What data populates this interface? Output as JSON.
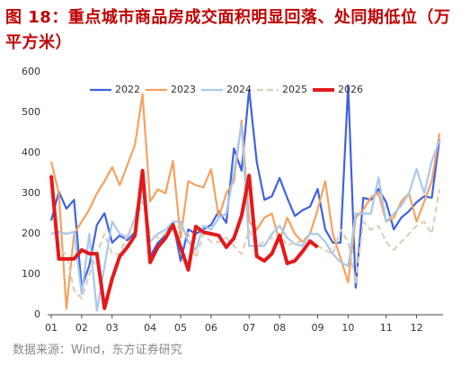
{
  "chart_data": {
    "type": "line",
    "title": "图 18：重点城市商品房成交面积明显回落、处同期低位（万平方米）",
    "source": "数据来源：Wind，东方证券研究",
    "categories": [
      "01",
      null,
      null,
      null,
      "02",
      null,
      null,
      null,
      "03",
      null,
      null,
      null,
      null,
      "04",
      null,
      null,
      null,
      "05",
      null,
      null,
      null,
      "06",
      null,
      null,
      null,
      null,
      "07",
      null,
      null,
      null,
      "08",
      null,
      null,
      null,
      null,
      "09",
      null,
      null,
      null,
      "10",
      null,
      null,
      null,
      null,
      "11",
      null,
      null,
      null,
      "12",
      null,
      null,
      null
    ],
    "series": [
      {
        "name": "2022",
        "color": "#3f63e0",
        "values": [
          233,
          304,
          262,
          284,
          67,
          122,
          222,
          251,
          178,
          196,
          184,
          204,
          333,
          144,
          178,
          196,
          229,
          133,
          211,
          200,
          211,
          222,
          256,
          227,
          411,
          356,
          556,
          378,
          284,
          293,
          338,
          289,
          244,
          258,
          267,
          311,
          211,
          178,
          178,
          567,
          67,
          289,
          284,
          311,
          278,
          211,
          240,
          256,
          278,
          293,
          289,
          433
        ]
      },
      {
        "name": "2023",
        "color": "#f7a15e",
        "values": [
          378,
          300,
          15,
          200,
          230,
          260,
          300,
          330,
          365,
          320,
          370,
          420,
          545,
          280,
          310,
          300,
          380,
          190,
          330,
          320,
          315,
          360,
          240,
          300,
          330,
          480,
          230,
          210,
          240,
          250,
          180,
          240,
          200,
          180,
          200,
          260,
          330,
          200,
          140,
          80,
          240,
          260,
          290,
          300,
          230,
          240,
          280,
          300,
          230,
          280,
          330,
          448
        ]
      },
      {
        "name": "2024",
        "color": "#a9c8ee",
        "values": [
          200,
          205,
          200,
          205,
          50,
          200,
          10,
          120,
          230,
          200,
          190,
          240,
          330,
          180,
          200,
          210,
          230,
          230,
          180,
          160,
          220,
          210,
          240,
          250,
          350,
          470,
          170,
          170,
          170,
          200,
          220,
          190,
          175,
          170,
          200,
          200,
          180,
          150,
          130,
          120,
          250,
          250,
          250,
          340,
          230,
          250,
          270,
          300,
          360,
          300,
          380,
          430
        ]
      },
      {
        "name": "2025",
        "color": "#dccfbb",
        "dashed": true,
        "values": [
          350,
          160,
          150,
          60,
          40,
          100,
          150,
          200,
          150,
          150,
          200,
          230,
          280,
          200,
          190,
          200,
          220,
          210,
          200,
          140,
          200,
          180,
          180,
          190,
          170,
          150,
          210,
          170,
          180,
          190,
          200,
          170,
          180,
          180,
          175,
          170,
          160,
          150,
          210,
          180,
          80,
          230,
          210,
          220,
          180,
          160,
          180,
          200,
          220,
          230,
          200,
          310
        ]
      },
      {
        "name": "2026",
        "color": "#e3191c",
        "line_width": 4,
        "values": [
          344,
          138,
          138,
          138,
          160,
          151,
          151,
          16,
          89,
          144,
          167,
          196,
          356,
          129,
          167,
          189,
          222,
          167,
          111,
          218,
          204,
          200,
          196,
          167,
          189,
          244,
          344,
          144,
          133,
          151,
          196,
          127,
          133,
          156,
          182,
          167,
          null,
          null,
          null,
          null,
          null,
          null,
          null,
          null,
          null,
          null,
          null,
          null,
          null,
          null,
          null,
          null
        ]
      }
    ],
    "ylim": [
      0,
      600
    ],
    "yticks": [
      0,
      100,
      200,
      300,
      400,
      500,
      600
    ],
    "legend": "top"
  }
}
